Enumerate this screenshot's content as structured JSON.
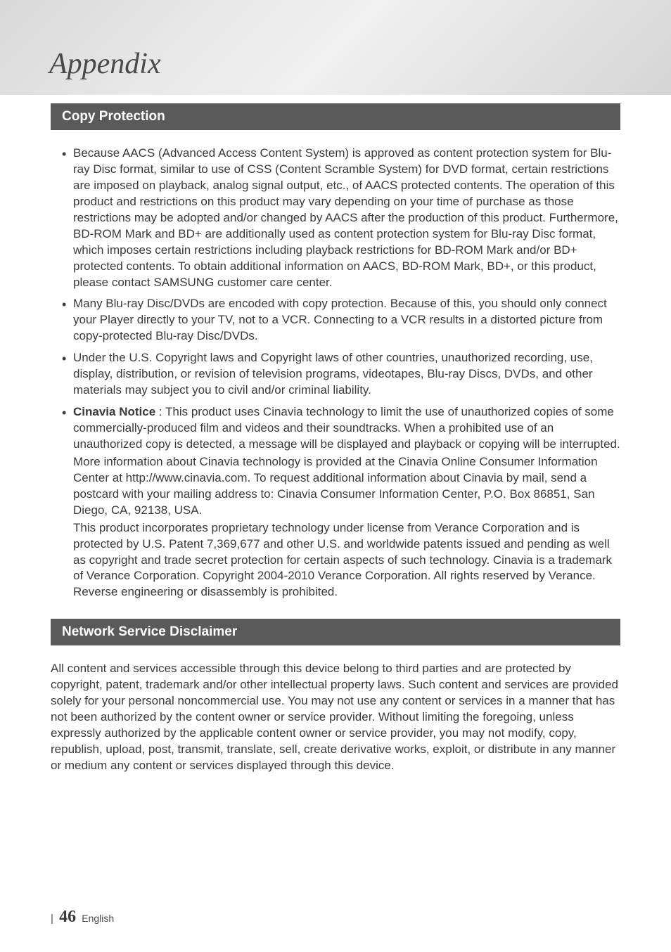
{
  "page": {
    "title": "Appendix",
    "number": "46",
    "language": "English"
  },
  "colors": {
    "section_header_bg": "#5a5a5a",
    "section_header_text": "#ffffff",
    "body_text": "#3a3a3a",
    "title_text": "#4a4a4a"
  },
  "typography": {
    "title_fontsize": 42,
    "title_family": "Georgia italic",
    "section_header_fontsize": 19,
    "body_fontsize": 17
  },
  "sections": [
    {
      "heading": "Copy Protection",
      "bullets": [
        {
          "text": "Because AACS (Advanced Access Content System) is approved as content protection system for Blu-ray Disc format, similar to use of CSS (Content Scramble System) for DVD format, certain restrictions are imposed on playback, analog signal output, etc., of AACS protected contents. The operation of this product and restrictions on this product may vary depending on your time of purchase as those restrictions may be adopted and/or changed by AACS after the production of this product. Furthermore, BD-ROM Mark and BD+ are additionally used as content protection system for Blu-ray Disc format, which imposes certain restrictions including playback restrictions for BD-ROM Mark and/or BD+ protected contents. To obtain additional information on AACS, BD-ROM Mark, BD+, or this product, please contact SAMSUNG customer care center."
        },
        {
          "text": "Many Blu-ray Disc/DVDs are encoded with copy protection. Because of this, you should only connect your Player directly to your TV, not to a VCR. Connecting to a VCR results in a distorted picture from copy-protected Blu-ray Disc/DVDs."
        },
        {
          "text": "Under the U.S. Copyright laws and Copyright laws of other countries, unauthorized recording, use, display, distribution, or revision of television programs, videotapes, Blu-ray Discs, DVDs, and other materials may subject you to civil and/or criminal liability."
        },
        {
          "bold_prefix": "Cinavia Notice",
          "text_after_bold": " : This product uses Cinavia technology to limit the use of unauthorized copies of some commercially-produced film and videos and their soundtracks. When a prohibited use of an unauthorized copy is detected, a message will be displayed and playback or copying will be interrupted.",
          "sub_paras": [
            "More information about Cinavia technology is provided at the Cinavia Online Consumer Information Center at http://www.cinavia.com. To request additional information about Cinavia by mail, send a postcard with your mailing address to: Cinavia Consumer Information Center, P.O. Box 86851, San Diego, CA, 92138, USA.",
            "This product incorporates proprietary technology under license from Verance Corporation and is protected by U.S. Patent 7,369,677 and other U.S. and worldwide patents issued and pending as well as copyright and trade secret protection for certain aspects of such technology. Cinavia is a trademark of Verance Corporation. Copyright 2004-2010 Verance Corporation. All rights reserved by Verance. Reverse engineering or disassembly is prohibited."
          ]
        }
      ]
    },
    {
      "heading": "Network Service Disclaimer",
      "para": "All content and services accessible through this device belong to third parties and are protected by copyright, patent, trademark and/or other intellectual property laws. Such content and services are provided solely for your personal noncommercial use. You may not use any content or services in a manner that has not been authorized by the content owner or service provider. Without limiting the foregoing, unless expressly authorized by the applicable content owner or service provider, you may not modify, copy, republish, upload, post, transmit, translate, sell, create derivative works, exploit, or distribute in any manner or medium any content or services displayed through this device."
    }
  ]
}
